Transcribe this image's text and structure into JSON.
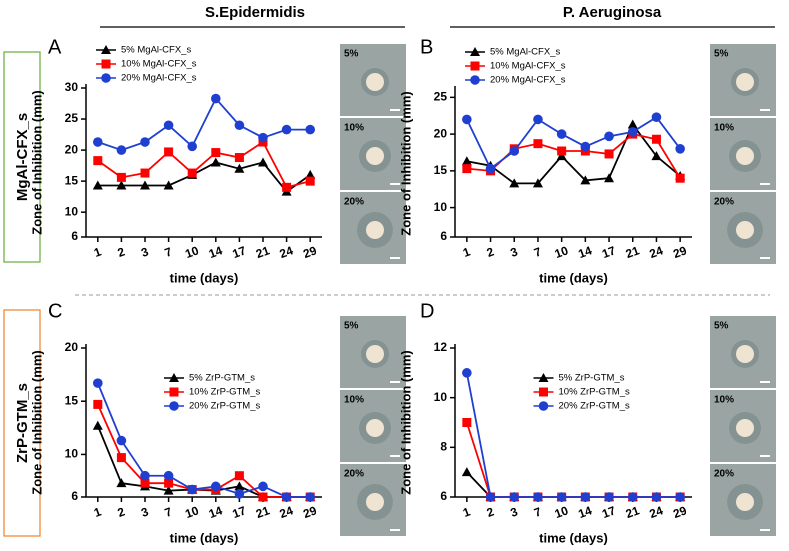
{
  "columns": [
    "S.Epidermidis",
    "P. Aeruginosa"
  ],
  "rows": [
    "MgAl-CFX_s",
    "ZrP-GTM_s"
  ],
  "chart_data": [
    {
      "type": "line",
      "panel": "A",
      "y_label": "Zone of Inhibition (mm)",
      "x_label": "time (days)",
      "categories": [
        "1",
        "2",
        "3",
        "7",
        "10",
        "14",
        "17",
        "21",
        "24",
        "29"
      ],
      "ylim": [
        6,
        30
      ],
      "yticks": [
        6,
        10,
        15,
        20,
        25,
        30
      ],
      "legend": "upper left",
      "image_labels": [
        "5%",
        "10%",
        "20%"
      ],
      "series": [
        {
          "name": "5% MgAl-CFX_s",
          "color": "#000000",
          "marker": "triangle",
          "values": [
            14.3,
            14.3,
            14.3,
            14.3,
            16,
            18,
            17,
            18,
            13.3,
            16
          ]
        },
        {
          "name": "10% MgAl-CFX_s",
          "color": "#ff0000",
          "marker": "square",
          "values": [
            18.3,
            15.6,
            16.3,
            19.7,
            16.3,
            19.6,
            18.8,
            21.3,
            14,
            15
          ]
        },
        {
          "name": "20% MgAl-CFX_s",
          "color": "#1f3fd0",
          "marker": "circle",
          "values": [
            21.3,
            20,
            21.3,
            24,
            20.6,
            28.3,
            24,
            22,
            23.3,
            23.3
          ]
        }
      ]
    },
    {
      "type": "line",
      "panel": "B",
      "y_label": "Zone of Inhibition (mm)",
      "x_label": "time (days)",
      "categories": [
        "1",
        "2",
        "3",
        "7",
        "10",
        "14",
        "17",
        "21",
        "24",
        "29"
      ],
      "ylim": [
        6,
        26
      ],
      "yticks": [
        6,
        10,
        15,
        20,
        25
      ],
      "legend": "upper left",
      "image_labels": [
        "5%",
        "10%",
        "20%"
      ],
      "series": [
        {
          "name": "5% MgAl-CFX_s",
          "color": "#000000",
          "marker": "triangle",
          "values": [
            16.3,
            15.7,
            13.3,
            13.3,
            17,
            13.7,
            14,
            21.3,
            17,
            14.3
          ]
        },
        {
          "name": "10% MgAl-CFX_s",
          "color": "#ff0000",
          "marker": "square",
          "values": [
            15.3,
            15,
            18,
            18.7,
            17.7,
            17.7,
            17.3,
            20,
            19.3,
            14
          ]
        },
        {
          "name": "20% MgAl-CFX_s",
          "color": "#1f3fd0",
          "marker": "circle",
          "values": [
            22,
            15.3,
            17.7,
            22,
            20,
            18.3,
            19.7,
            20.3,
            22.3,
            18
          ]
        }
      ]
    },
    {
      "type": "line",
      "panel": "C",
      "y_label": "Zone of Inhibition (mm)",
      "x_label": "time (days)",
      "categories": [
        "1",
        "2",
        "3",
        "7",
        "10",
        "14",
        "17",
        "21",
        "24",
        "29"
      ],
      "ylim": [
        6,
        20
      ],
      "yticks": [
        6,
        10,
        15,
        20
      ],
      "legend": "upper center",
      "image_labels": [
        "5%",
        "10%",
        "20%"
      ],
      "series": [
        {
          "name": "5% ZrP-GTM_s",
          "color": "#000000",
          "marker": "triangle",
          "values": [
            12.7,
            7.3,
            7,
            6.6,
            6.7,
            6.6,
            7,
            6,
            6,
            6
          ]
        },
        {
          "name": "10% ZrP-GTM_s",
          "color": "#ff0000",
          "marker": "square",
          "values": [
            14.7,
            9.7,
            7.3,
            7.3,
            6.7,
            6.7,
            8,
            6,
            6,
            6
          ]
        },
        {
          "name": "20% ZrP-GTM_s",
          "color": "#1f3fd0",
          "marker": "circle",
          "values": [
            16.7,
            11.3,
            8,
            8,
            6.7,
            7,
            6.3,
            7,
            6,
            6
          ]
        }
      ]
    },
    {
      "type": "line",
      "panel": "D",
      "y_label": "Zone of Inhibition (mm)",
      "x_label": "time (days)",
      "categories": [
        "1",
        "2",
        "3",
        "7",
        "10",
        "14",
        "17",
        "21",
        "24",
        "29"
      ],
      "ylim": [
        6,
        12
      ],
      "yticks": [
        6,
        8,
        10,
        12
      ],
      "legend": "upper center",
      "image_labels": [
        "5%",
        "10%",
        "20%"
      ],
      "series": [
        {
          "name": "5% ZrP-GTM_s",
          "color": "#000000",
          "marker": "triangle",
          "values": [
            7,
            6,
            6,
            6,
            6,
            6,
            6,
            6,
            6,
            6
          ]
        },
        {
          "name": "10% ZrP-GTM_s",
          "color": "#ff0000",
          "marker": "square",
          "values": [
            9,
            6,
            6,
            6,
            6,
            6,
            6,
            6,
            6,
            6
          ]
        },
        {
          "name": "20% ZrP-GTM_s",
          "color": "#1f3fd0",
          "marker": "circle",
          "values": [
            11,
            6,
            6,
            6,
            6,
            6,
            6,
            6,
            6,
            6
          ]
        }
      ]
    }
  ]
}
